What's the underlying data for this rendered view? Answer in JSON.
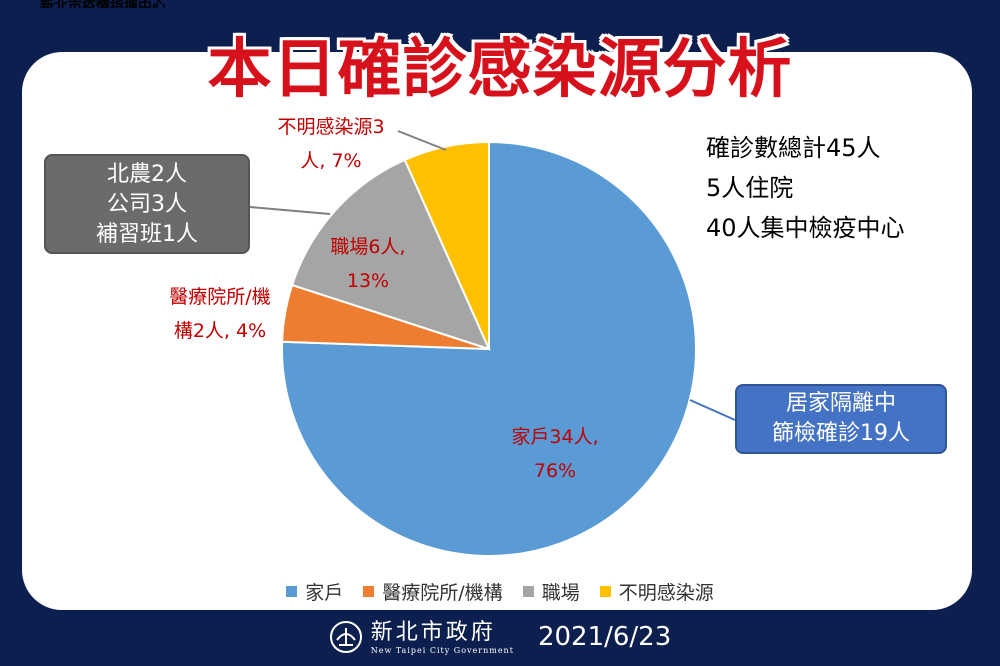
{
  "header": {
    "top_strip": "新北市疫情指揮中心",
    "title": "本日確診感染源分析"
  },
  "summary": {
    "lines": [
      "確診數總計45人",
      "5人住院",
      "40人集中檢疫中心"
    ]
  },
  "callouts": {
    "workplace_detail": [
      "北農2人",
      "公司3人",
      "補習班1人"
    ],
    "household_detail": [
      "居家隔離中",
      "篩檢確診19人"
    ]
  },
  "slice_labels": {
    "household": [
      "家戶34人,",
      "76%"
    ],
    "medical": [
      "醫療院所/機",
      "構2人, 4%"
    ],
    "workplace": [
      "職場6人,",
      "13%"
    ],
    "unknown": [
      "不明感染源3",
      "人, 7%"
    ]
  },
  "footer": {
    "logo_cn": "新北市政府",
    "logo_en": "New Taipei City Government",
    "date": "2021/6/23"
  },
  "chart_data": {
    "type": "pie",
    "title": "本日確診感染源分析",
    "categories": [
      "家戶",
      "醫療院所/機構",
      "職場",
      "不明感染源"
    ],
    "values": [
      34,
      2,
      6,
      3
    ],
    "percent": [
      76,
      4,
      13,
      7
    ],
    "colors": [
      "#5b9bd5",
      "#ed7d31",
      "#a5a5a5",
      "#ffc000"
    ],
    "legend_position": "bottom"
  }
}
